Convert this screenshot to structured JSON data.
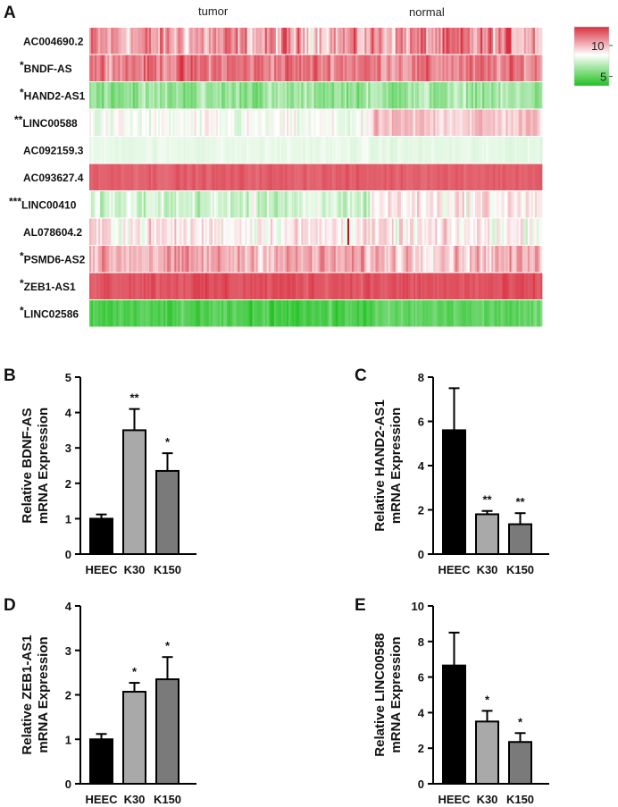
{
  "panels": {
    "a": "A",
    "b": "B",
    "c": "C",
    "d": "D",
    "e": "E"
  },
  "chart_data": [
    {
      "type": "heatmap",
      "panel": "A",
      "columns": {
        "left": "tumor",
        "right": "normal"
      },
      "rows": [
        {
          "name": "AC004690.2",
          "sig": "",
          "mean": 10.5,
          "spread": 2.2,
          "normal_mean": 10.8
        },
        {
          "name": "BNDF-AS",
          "sig": "*",
          "mean": 11.5,
          "spread": 1.3,
          "normal_mean": 11.2
        },
        {
          "name": "HAND2-AS1",
          "sig": "*",
          "mean": 6.2,
          "spread": 1.3,
          "normal_mean": 6.4
        },
        {
          "name": "LINC00588",
          "sig": "**",
          "mean": 8.2,
          "spread": 1.0,
          "normal_mean": 9.7
        },
        {
          "name": "AC092159.3",
          "sig": "",
          "mean": 8.0,
          "spread": 0.25,
          "normal_mean": 7.9
        },
        {
          "name": "AC093627.4",
          "sig": "",
          "mean": 12.0,
          "spread": 0.35,
          "normal_mean": 12.0
        },
        {
          "name": "LINC00410",
          "sig": "***",
          "mean": 7.4,
          "spread": 1.3,
          "normal_mean": 9.0
        },
        {
          "name": "AL078604.2",
          "sig": "",
          "mean": 9.0,
          "spread": 1.3,
          "normal_mean": 8.8
        },
        {
          "name": "PSMD6-AS2",
          "sig": "*",
          "mean": 10.3,
          "spread": 1.4,
          "normal_mean": 10.1
        },
        {
          "name": "ZEB1-AS1",
          "sig": "*",
          "mean": 12.3,
          "spread": 0.5,
          "normal_mean": 12.2
        },
        {
          "name": "LINC02586",
          "sig": "*",
          "mean": 4.5,
          "spread": 0.8,
          "normal_mean": 4.9
        }
      ],
      "colorbar": {
        "min": 3.5,
        "max": 13,
        "ticks": [
          "10",
          "5"
        ],
        "tick_values": [
          10,
          5
        ],
        "low_color": "#21c121",
        "mid_color": "#ffffff",
        "high_color": "#d93040",
        "mid_value": 8.5
      }
    },
    {
      "type": "bar",
      "panel": "B",
      "categories": [
        "HEEC",
        "K30",
        "K150"
      ],
      "values": [
        1.0,
        3.5,
        2.35
      ],
      "errors": [
        0.12,
        0.6,
        0.5
      ],
      "significance": [
        "",
        "**",
        "*"
      ],
      "colors": [
        "#000000",
        "#a9a9a9",
        "#7a7a7a"
      ],
      "ylabel": [
        "Relative BDNF-AS",
        "mRNA Expression"
      ],
      "ylim": [
        0,
        5
      ],
      "yticks": [
        "0",
        "1",
        "2",
        "3",
        "4",
        "5"
      ]
    },
    {
      "type": "bar",
      "panel": "C",
      "categories": [
        "HEEC",
        "K30",
        "K150"
      ],
      "values": [
        5.6,
        1.8,
        1.35
      ],
      "errors": [
        1.9,
        0.15,
        0.5
      ],
      "significance": [
        "",
        "**",
        "**"
      ],
      "colors": [
        "#000000",
        "#a9a9a9",
        "#7a7a7a"
      ],
      "ylabel": [
        "Relative HAND2-AS1",
        "mRNA Expression"
      ],
      "ylim": [
        0,
        8
      ],
      "yticks": [
        "0",
        "2",
        "4",
        "6",
        "8"
      ]
    },
    {
      "type": "bar",
      "panel": "D",
      "categories": [
        "HEEC",
        "K30",
        "K150"
      ],
      "values": [
        1.0,
        2.07,
        2.35
      ],
      "errors": [
        0.12,
        0.2,
        0.5
      ],
      "significance": [
        "",
        "*",
        "*"
      ],
      "colors": [
        "#000000",
        "#a9a9a9",
        "#7a7a7a"
      ],
      "ylabel": [
        "Relative ZEB1-AS1",
        "mRNA Expression"
      ],
      "ylim": [
        0,
        4
      ],
      "yticks": [
        "0",
        "1",
        "2",
        "3",
        "4"
      ]
    },
    {
      "type": "bar",
      "panel": "E",
      "categories": [
        "HEEC",
        "K30",
        "K150"
      ],
      "values": [
        6.65,
        3.5,
        2.35
      ],
      "errors": [
        1.85,
        0.6,
        0.5
      ],
      "significance": [
        "",
        "*",
        "*"
      ],
      "colors": [
        "#000000",
        "#a9a9a9",
        "#7a7a7a"
      ],
      "ylabel": [
        "Relative LINC00588",
        "mRNA Expression"
      ],
      "ylim": [
        0,
        10
      ],
      "yticks": [
        "0",
        "2",
        "4",
        "6",
        "8",
        "10"
      ]
    }
  ]
}
